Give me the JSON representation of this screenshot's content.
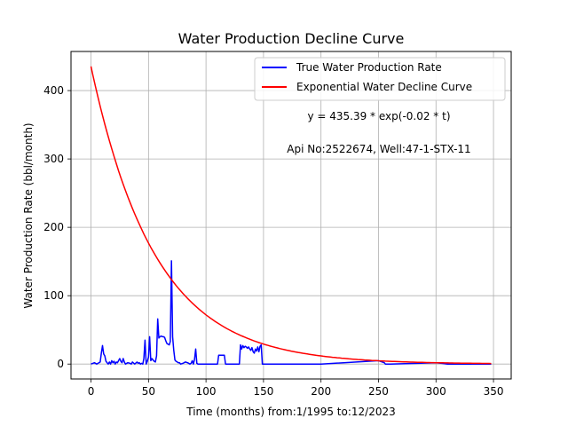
{
  "chart_data": {
    "type": "line",
    "title": "Water Production Decline Curve",
    "xlabel": "Time (months) from:1/1995 to:12/2023",
    "ylabel": "Water Production Rate (bbl/month)",
    "xlim": [
      -17.4,
      365.4
    ],
    "ylim": [
      -21.8,
      457.2
    ],
    "xticks": [
      0,
      50,
      100,
      150,
      200,
      250,
      300,
      350
    ],
    "yticks": [
      0,
      100,
      200,
      300,
      400
    ],
    "grid": true,
    "legend_position": "top-right",
    "annotations": [
      "y = 435.39 * exp(-0.02 * t)",
      "Api No:2522674, Well:47-1-STX-11"
    ],
    "series": [
      {
        "name": "True Water Production Rate",
        "color": "#0000ff",
        "x": [
          0,
          3,
          5,
          6,
          7,
          8,
          9,
          10,
          11,
          12,
          13,
          14,
          15,
          16,
          17,
          18,
          19,
          20,
          21,
          22,
          23,
          24,
          25,
          26,
          27,
          28,
          29,
          30,
          32,
          34,
          35,
          36,
          38,
          40,
          41,
          42,
          43,
          44,
          45,
          46,
          47,
          48,
          49,
          50,
          51,
          52,
          53,
          54,
          55,
          56,
          57,
          58,
          59,
          60,
          61,
          62,
          63,
          64,
          65,
          66,
          67,
          68,
          69,
          70,
          71,
          72,
          73,
          74,
          75,
          76,
          77,
          78,
          80,
          82,
          84,
          86,
          87,
          88,
          89,
          90,
          91,
          92,
          93,
          94,
          96,
          100,
          110,
          111,
          112,
          113,
          114,
          115,
          116,
          117,
          120,
          129,
          130,
          131,
          132,
          133,
          134,
          135,
          136,
          137,
          138,
          139,
          140,
          141,
          142,
          143,
          144,
          145,
          146,
          147,
          148,
          149,
          150,
          151,
          152,
          153,
          154,
          200,
          250,
          255,
          256,
          257,
          258,
          259,
          260,
          300,
          305,
          310,
          348
        ],
        "y": [
          0,
          2,
          0,
          1,
          2,
          3,
          16,
          27,
          15,
          12,
          4,
          2,
          0,
          3,
          0,
          5,
          2,
          4,
          0,
          3,
          2,
          5,
          8,
          4,
          2,
          8,
          3,
          0,
          2,
          1,
          0,
          3,
          0,
          3,
          1,
          2,
          0,
          1,
          0,
          8,
          35,
          0,
          4,
          10,
          40,
          5,
          8,
          6,
          4,
          3,
          12,
          66,
          38,
          40,
          41,
          40,
          40,
          39,
          34,
          30,
          29,
          28,
          33,
          151,
          40,
          20,
          6,
          4,
          3,
          2,
          2,
          0,
          1,
          3,
          2,
          0,
          1,
          5,
          0,
          7,
          22,
          1,
          0,
          0,
          0,
          0,
          0,
          13,
          13,
          13,
          13,
          13,
          13,
          0,
          0,
          0,
          28,
          22,
          27,
          24,
          26,
          25,
          23,
          25,
          22,
          20,
          24,
          18,
          16,
          22,
          19,
          25,
          18,
          26,
          28,
          0,
          0,
          0,
          0,
          0,
          0,
          0,
          5,
          2,
          0,
          0,
          0,
          0,
          0,
          2,
          1,
          0,
          0
        ]
      },
      {
        "name": "Exponential Water Decline Curve",
        "color": "#ff0000",
        "equation": "y = 435.39 * exp(-0.02 * t)",
        "a": 435.39,
        "b": 0.018,
        "x_range": [
          0,
          348
        ]
      }
    ]
  }
}
